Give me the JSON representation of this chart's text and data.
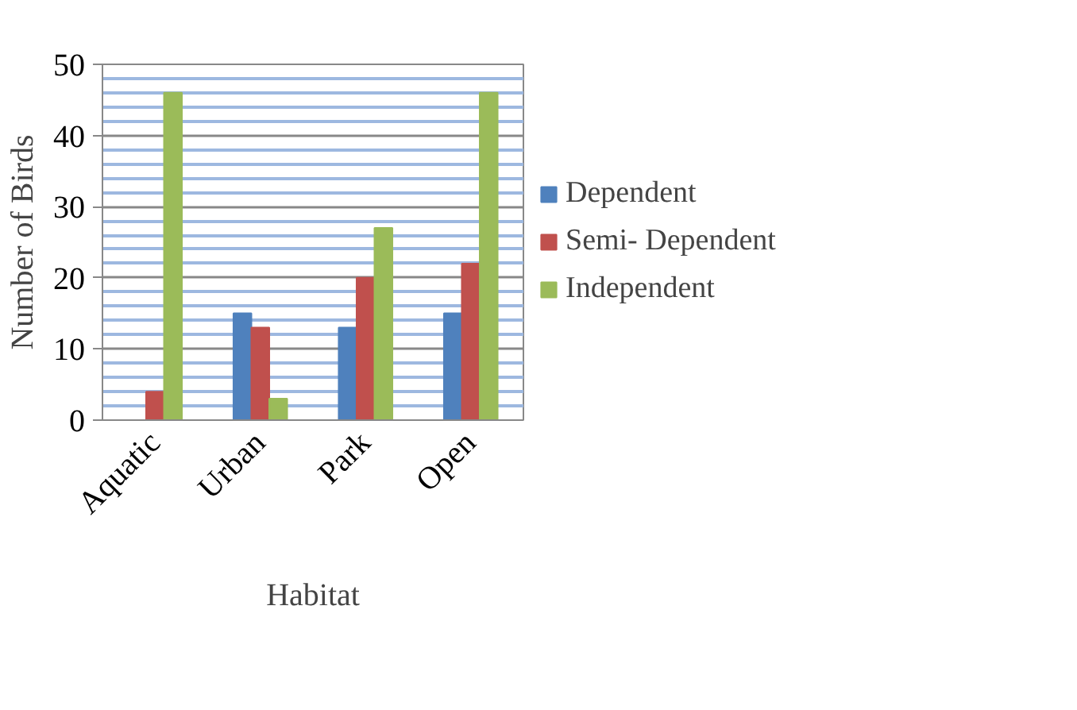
{
  "chart_data": {
    "type": "bar",
    "xlabel": "Habitat",
    "ylabel": "Number of Birds",
    "categories": [
      "Aquatic",
      "Urban",
      "Park",
      "Open"
    ],
    "series": [
      {
        "name": "Dependent",
        "color": "#4f81bd",
        "values": [
          0,
          15,
          13,
          15
        ]
      },
      {
        "name": "Semi- Dependent",
        "color": "#c0504d",
        "values": [
          4,
          13,
          20,
          22
        ]
      },
      {
        "name": "Independent",
        "color": "#9bbb59",
        "values": [
          46,
          3,
          27,
          46
        ]
      }
    ],
    "ylim": [
      0,
      50
    ],
    "yticks": [
      0,
      {
        "value": 2,
        "label": null
      },
      {
        "value": 4,
        "label": null
      },
      {
        "value": 6,
        "label": null
      },
      {
        "value": 8,
        "label": null
      },
      10,
      {
        "value": 12,
        "label": null
      },
      {
        "value": 14,
        "label": null
      },
      {
        "value": 16,
        "label": null
      },
      {
        "value": 18,
        "label": null
      },
      20,
      {
        "value": 22,
        "label": null
      },
      {
        "value": 24,
        "label": null
      },
      {
        "value": 26,
        "label": null
      },
      {
        "value": 28,
        "label": null
      },
      30,
      {
        "value": 32,
        "label": null
      },
      {
        "value": 34,
        "label": null
      },
      {
        "value": 36,
        "label": null
      },
      {
        "value": 38,
        "label": null
      },
      40,
      {
        "value": 42,
        "label": null
      },
      {
        "value": 44,
        "label": null
      },
      {
        "value": 46,
        "label": null
      },
      {
        "value": 48,
        "label": null
      },
      50
    ],
    "grid": "y",
    "legend": "right"
  }
}
